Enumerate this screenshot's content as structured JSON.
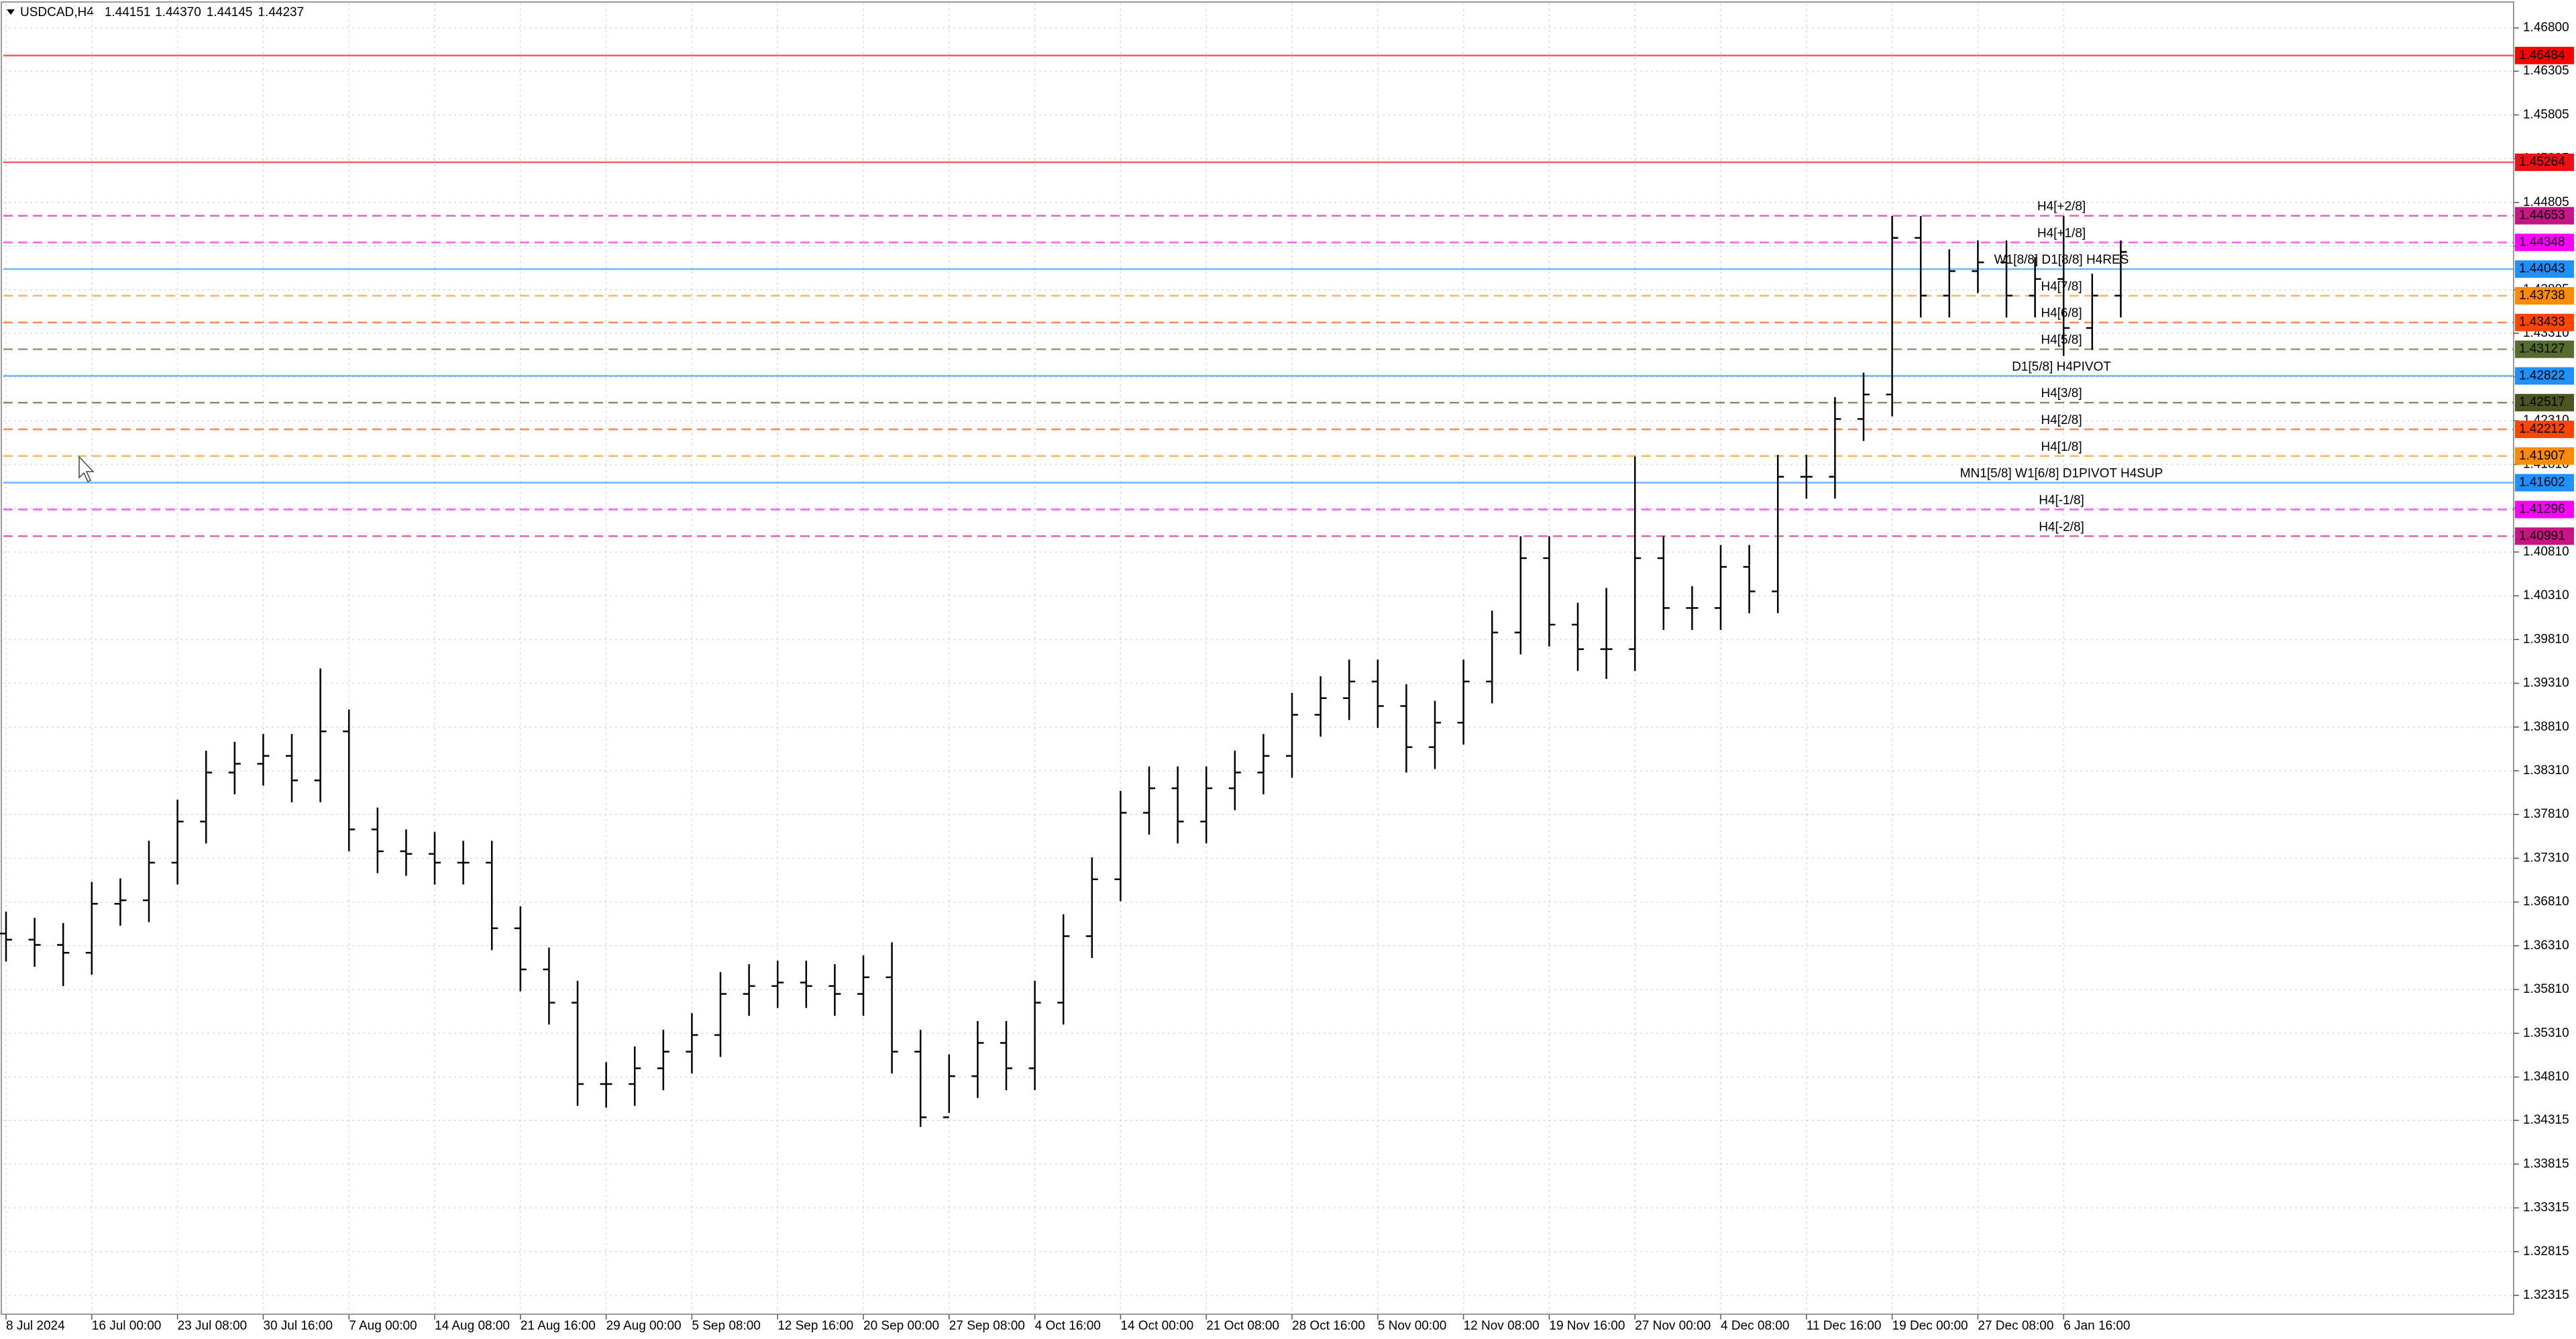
{
  "header": {
    "symbol": "USDCAD,H4",
    "open": "1.44151",
    "high": "1.44370",
    "low": "1.44145",
    "close": "1.44237"
  },
  "chart_data": {
    "type": "candlestick",
    "style": "bars",
    "color": "#000000",
    "grid": true,
    "categories": [
      "8 Jul 2024",
      null,
      null,
      "16 Jul 00:00",
      null,
      null,
      "23 Jul 08:00",
      null,
      null,
      "30 Jul 16:00",
      null,
      null,
      "7 Aug 00:00",
      null,
      null,
      "14 Aug 08:00",
      null,
      null,
      "21 Aug 16:00",
      null,
      null,
      "29 Aug 00:00",
      null,
      null,
      "5 Sep 08:00",
      null,
      null,
      "12 Sep 16:00",
      null,
      null,
      "20 Sep 00:00",
      null,
      null,
      "27 Sep 08:00",
      null,
      null,
      "4 Oct 16:00",
      null,
      null,
      "14 Oct 00:00",
      null,
      null,
      "21 Oct 08:00",
      null,
      null,
      "28 Oct 16:00",
      null,
      null,
      "5 Nov 00:00",
      null,
      null,
      "12 Nov 08:00",
      null,
      null,
      "19 Nov 16:00",
      null,
      null,
      "27 Nov 00:00",
      null,
      null,
      "4 Dec 08:00",
      null,
      null,
      "11 Dec 16:00",
      null,
      null,
      "19 Dec 00:00",
      null,
      null,
      "27 Dec 08:00",
      null,
      null,
      "6 Jan 16:00",
      null,
      null
    ],
    "open": [
      1.3645,
      1.3638,
      1.3632,
      1.3623,
      1.3679,
      1.3683,
      1.3726,
      1.3773,
      1.3829,
      1.3839,
      1.3848,
      1.382,
      1.3876,
      1.3764,
      1.3739,
      1.3736,
      1.3726,
      1.3726,
      1.3651,
      1.3604,
      1.3566,
      1.3473,
      1.3473,
      1.3491,
      1.351,
      1.3529,
      1.3576,
      1.3585,
      1.3589,
      1.3585,
      1.3576,
      1.3595,
      1.351,
      1.3435,
      1.3482,
      1.352,
      1.3491,
      1.3566,
      1.3642,
      1.3707,
      1.3783,
      1.3811,
      1.3773,
      1.3811,
      1.3829,
      1.3848,
      1.3895,
      1.3914,
      1.3933,
      1.3905,
      1.3858,
      1.3886,
      1.3933,
      1.3989,
      1.4074,
      1.3998,
      1.397,
      1.397,
      1.4074,
      1.4017,
      1.4017,
      1.4064,
      1.4036,
      1.4167,
      1.4167,
      1.4233,
      1.4261,
      1.444,
      1.4374,
      1.4402,
      1.4412,
      1.4374,
      1.4393,
      1.4337,
      1.4374
    ],
    "high": [
      1.367,
      1.3663,
      1.3657,
      1.3704,
      1.3708,
      1.3751,
      1.3798,
      1.3854,
      1.3864,
      1.3873,
      1.3873,
      1.3948,
      1.3901,
      1.3789,
      1.3764,
      1.3761,
      1.3751,
      1.3751,
      1.3676,
      1.3629,
      1.3591,
      1.3498,
      1.3516,
      1.3535,
      1.3554,
      1.3601,
      1.361,
      1.3614,
      1.3614,
      1.361,
      1.362,
      1.3635,
      1.3535,
      1.3507,
      1.3545,
      1.3545,
      1.3591,
      1.3667,
      1.3732,
      1.3808,
      1.3836,
      1.3836,
      1.3836,
      1.3854,
      1.3873,
      1.392,
      1.3939,
      1.3958,
      1.3958,
      1.393,
      1.3911,
      1.3958,
      1.4014,
      1.4099,
      1.4099,
      1.4023,
      1.404,
      1.419,
      1.4099,
      1.4042,
      1.4089,
      1.4089,
      1.4192,
      1.4192,
      1.4258,
      1.4286,
      1.4465,
      1.4465,
      1.4427,
      1.4437,
      1.4437,
      1.4418,
      1.4465,
      1.4399,
      1.4437
    ],
    "low": [
      1.3613,
      1.3607,
      1.3585,
      1.3598,
      1.3654,
      1.3658,
      1.3701,
      1.3748,
      1.3804,
      1.3814,
      1.3795,
      1.3795,
      1.3739,
      1.3714,
      1.3711,
      1.3701,
      1.3701,
      1.3626,
      1.3579,
      1.3541,
      1.3448,
      1.3446,
      1.3448,
      1.3466,
      1.3485,
      1.3504,
      1.3551,
      1.356,
      1.356,
      1.3551,
      1.3551,
      1.3485,
      1.3424,
      1.344,
      1.3457,
      1.3466,
      1.3466,
      1.3541,
      1.3617,
      1.3682,
      1.3758,
      1.3748,
      1.3748,
      1.3786,
      1.3804,
      1.3823,
      1.387,
      1.3889,
      1.388,
      1.3829,
      1.3833,
      1.3861,
      1.3908,
      1.3964,
      1.3973,
      1.3945,
      1.3936,
      1.3945,
      1.3992,
      1.3992,
      1.3992,
      1.4011,
      1.4011,
      1.4142,
      1.4142,
      1.4208,
      1.4236,
      1.4349,
      1.4349,
      1.4377,
      1.4349,
      1.4349,
      1.4305,
      1.4312,
      1.4349
    ],
    "close": [
      1.3638,
      1.3632,
      1.3623,
      1.3679,
      1.3683,
      1.3726,
      1.3773,
      1.3829,
      1.3839,
      1.3848,
      1.382,
      1.3876,
      1.3764,
      1.3739,
      1.3736,
      1.3726,
      1.3726,
      1.3651,
      1.3604,
      1.3566,
      1.3473,
      1.3473,
      1.3491,
      1.351,
      1.3529,
      1.3576,
      1.3585,
      1.3589,
      1.3585,
      1.3576,
      1.3595,
      1.351,
      1.3435,
      1.3482,
      1.352,
      1.3491,
      1.3566,
      1.3642,
      1.3707,
      1.3783,
      1.3811,
      1.3773,
      1.3811,
      1.3829,
      1.3848,
      1.3895,
      1.3914,
      1.3933,
      1.3905,
      1.3858,
      1.3886,
      1.3933,
      1.3989,
      1.4074,
      1.3998,
      1.397,
      1.397,
      1.4074,
      1.4017,
      1.4017,
      1.4064,
      1.4036,
      1.4167,
      1.4167,
      1.4233,
      1.4261,
      1.444,
      1.4374,
      1.4402,
      1.4412,
      1.4374,
      1.4393,
      1.4337,
      1.4374,
      1.4424
    ],
    "ylim": [
      1.321,
      1.4708
    ],
    "yticks": [
      {
        "value": 1.468,
        "label": "1.46800"
      },
      1.46305,
      1.45805,
      1.45305,
      1.44805,
      1.44305,
      1.43805,
      {
        "value": 1.4331,
        "label": "1.43310"
      },
      {
        "value": 1.4281,
        "label": "1.42810"
      },
      {
        "value": 1.4231,
        "label": "1.42310"
      },
      {
        "value": 1.4181,
        "label": "1.41810"
      },
      {
        "value": 1.4131,
        "label": "1.41310"
      },
      {
        "value": 1.4081,
        "label": "1.40810"
      },
      {
        "value": 1.4031,
        "label": "1.40310"
      },
      {
        "value": 1.3981,
        "label": "1.39810"
      },
      {
        "value": 1.3931,
        "label": "1.39310"
      },
      {
        "value": 1.3881,
        "label": "1.38810"
      },
      {
        "value": 1.3831,
        "label": "1.38310"
      },
      {
        "value": 1.3781,
        "label": "1.37810"
      },
      {
        "value": 1.3731,
        "label": "1.37310"
      },
      {
        "value": 1.3681,
        "label": "1.36810"
      },
      {
        "value": 1.3631,
        "label": "1.36310"
      },
      {
        "value": 1.3581,
        "label": "1.35810"
      },
      {
        "value": 1.3531,
        "label": "1.35310"
      },
      {
        "value": 1.3481,
        "label": "1.34810"
      },
      1.34315,
      1.33815,
      1.33315,
      1.32815,
      1.32315
    ],
    "levels": [
      {
        "value": 1.46484,
        "color": "#ff0000",
        "dashed": false
      },
      {
        "value": 1.45264,
        "color": "#ee1111",
        "dashed": false
      },
      {
        "value": 1.44653,
        "name": "H4[+2/8]",
        "color": "#c71585",
        "dashed": true
      },
      {
        "value": 1.44348,
        "name": "H4[+1/8]",
        "color": "#ff00ff",
        "dashed": true
      },
      {
        "value": 1.44043,
        "name": "W1[8/8] D1[8/8] H4RES",
        "color": "#1e90ff",
        "dashed": false
      },
      {
        "value": 1.43738,
        "name": "H4[7/8]",
        "color": "#ff8c00",
        "dashed": true
      },
      {
        "value": 1.43433,
        "name": "H4[6/8]",
        "color": "#ff4500",
        "dashed": true
      },
      {
        "value": 1.43127,
        "name": "H4[5/8]",
        "color": "#556b2f",
        "dashed": true
      },
      {
        "value": 1.42822,
        "name": "D1[5/8] H4PIVOT",
        "color": "#1e90ff",
        "dashed": false
      },
      {
        "value": 1.42517,
        "name": "H4[3/8]",
        "color": "#4b5320",
        "dashed": true
      },
      {
        "value": 1.42212,
        "name": "H4[2/8]",
        "color": "#ff4500",
        "dashed": true
      },
      {
        "value": 1.41907,
        "name": "H4[1/8]",
        "color": "#ff8c00",
        "dashed": true
      },
      {
        "value": 1.41602,
        "name": "MN1[5/8] W1[6/8] D1PIVOT H4SUP",
        "color": "#1e90ff",
        "dashed": false
      },
      {
        "value": 1.41296,
        "name": "H4[-1/8]",
        "color": "#ff00ff",
        "dashed": true
      },
      {
        "value": 1.40991,
        "name": "H4[-2/8]",
        "color": "#c71585",
        "dashed": true
      }
    ]
  }
}
